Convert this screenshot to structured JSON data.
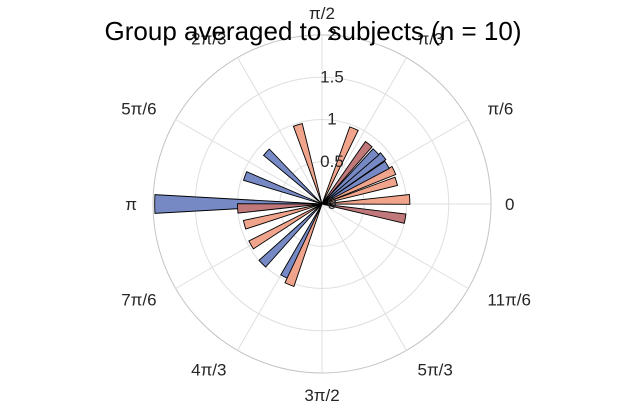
{
  "chart_data": {
    "type": "polar-bar",
    "title": "Group averaged to subjects (n = 10)",
    "theta_tick_labels": [
      "0",
      "π/6",
      "π/3",
      "π/2",
      "2π/3",
      "5π/6",
      "π",
      "7π/6",
      "4π/3",
      "3π/2",
      "5π/3",
      "11π/6"
    ],
    "r_tick_labels": [
      "0",
      "0.5",
      "1",
      "1.5",
      "2"
    ],
    "r_ticks": [
      0,
      0.5,
      1,
      1.5,
      2
    ],
    "rlim": [
      0,
      2
    ],
    "grid": true,
    "colors": {
      "blue": "#7689c4",
      "salmon": "#efa48b",
      "red": "#c0787a"
    },
    "bars": [
      {
        "theta_deg": 350.0,
        "r": 1.0,
        "color": "red"
      },
      {
        "theta_deg": 3.0,
        "r": 1.04,
        "color": "salmon"
      },
      {
        "theta_deg": 17.0,
        "r": 0.92,
        "color": "salmon"
      },
      {
        "theta_deg": 25.0,
        "r": 0.94,
        "color": "salmon"
      },
      {
        "theta_deg": 31.0,
        "r": 0.9,
        "color": "blue"
      },
      {
        "theta_deg": 38.0,
        "r": 0.92,
        "color": "blue"
      },
      {
        "theta_deg": 44.0,
        "r": 0.89,
        "color": "blue"
      },
      {
        "theta_deg": 52.0,
        "r": 0.9,
        "color": "red"
      },
      {
        "theta_deg": 67.0,
        "r": 0.97,
        "color": "salmon"
      },
      {
        "theta_deg": 107.0,
        "r": 0.98,
        "color": "salmon"
      },
      {
        "theta_deg": 137.0,
        "r": 0.9,
        "color": "blue"
      },
      {
        "theta_deg": 160.0,
        "r": 0.97,
        "color": "blue"
      },
      {
        "theta_deg": 180.0,
        "r": 1.98,
        "color": "blue"
      },
      {
        "theta_deg": 183.0,
        "r": 1.0,
        "color": "red"
      },
      {
        "theta_deg": 195.0,
        "r": 0.95,
        "color": "salmon"
      },
      {
        "theta_deg": 210.0,
        "r": 0.97,
        "color": "salmon"
      },
      {
        "theta_deg": 225.0,
        "r": 1.0,
        "color": "blue"
      },
      {
        "theta_deg": 243.0,
        "r": 0.97,
        "color": "blue"
      },
      {
        "theta_deg": 248.0,
        "r": 1.03,
        "color": "salmon"
      }
    ]
  }
}
